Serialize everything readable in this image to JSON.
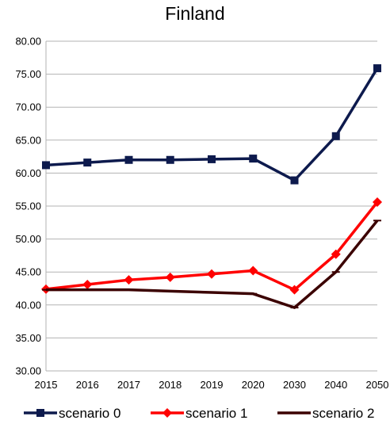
{
  "chart_data": {
    "type": "line",
    "title": "Finland",
    "xlabel": "",
    "ylabel": "",
    "categories": [
      "2015",
      "2016",
      "2017",
      "2018",
      "2019",
      "2020",
      "2030",
      "2040",
      "2050"
    ],
    "ylim": [
      30,
      80
    ],
    "yticks": [
      "30.00",
      "35.00",
      "40.00",
      "45.00",
      "50.00",
      "55.00",
      "60.00",
      "65.00",
      "70.00",
      "75.00",
      "80.00"
    ],
    "grid": "horizontal",
    "legend_position": "bottom",
    "series": [
      {
        "name": "scenario 0",
        "color": "#0d1a4d",
        "marker": "square",
        "values": [
          61.2,
          61.6,
          62.0,
          62.0,
          62.1,
          62.2,
          58.9,
          65.6,
          75.9
        ]
      },
      {
        "name": "scenario 1",
        "color": "#ff0000",
        "marker": "diamond",
        "values": [
          42.4,
          43.1,
          43.8,
          44.2,
          44.7,
          45.2,
          42.3,
          47.7,
          55.6
        ]
      },
      {
        "name": "scenario 2",
        "color": "#3b0000",
        "marker": "dash",
        "values": [
          42.3,
          42.3,
          42.3,
          42.1,
          41.9,
          41.7,
          39.6,
          45.0,
          52.8
        ]
      }
    ]
  }
}
